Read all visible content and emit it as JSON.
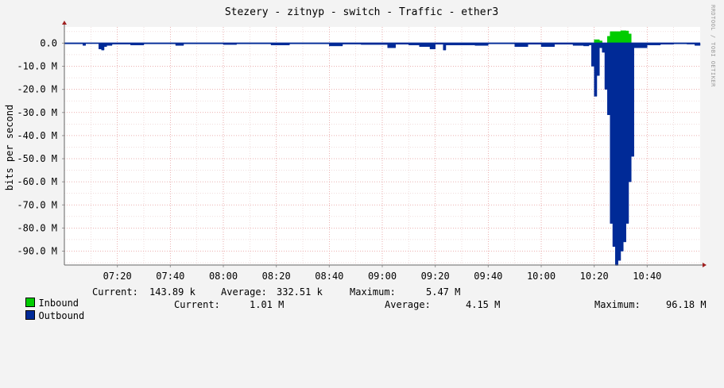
{
  "chart_data": {
    "type": "area",
    "title": "Stezery - zitnyp - switch - Traffic - ether3",
    "ylabel": "bits per second",
    "xlabel": "",
    "ylim": [
      -96,
      7
    ],
    "y_unit_note": "values in M (millions of bits per second)",
    "yticks": [
      "0.0",
      "-10.0 M",
      "-20.0 M",
      "-30.0 M",
      "-40.0 M",
      "-50.0 M",
      "-60.0 M",
      "-70.0 M",
      "-80.0 M",
      "-90.0 M"
    ],
    "ytick_values": [
      0,
      -10,
      -20,
      -30,
      -40,
      -50,
      -60,
      -70,
      -80,
      -90
    ],
    "xticks": [
      "07:20",
      "07:40",
      "08:00",
      "08:20",
      "08:40",
      "09:00",
      "09:20",
      "09:40",
      "10:00",
      "10:20",
      "10:40"
    ],
    "x_start": "07:00",
    "x_end": "11:00",
    "grid": true,
    "series": [
      {
        "name": "Inbound",
        "color": "#00cc00",
        "points": [
          [
            "10:18",
            0
          ],
          [
            "10:20",
            1.5
          ],
          [
            "10:22",
            1.0
          ],
          [
            "10:23",
            0
          ],
          [
            "10:25",
            3
          ],
          [
            "10:26",
            5
          ],
          [
            "10:30",
            5.4
          ],
          [
            "10:32",
            5.3
          ],
          [
            "10:33",
            4
          ],
          [
            "10:34",
            0
          ]
        ]
      },
      {
        "name": "Outbound",
        "color": "#002a97",
        "points": [
          [
            "07:00",
            -0.3
          ],
          [
            "07:07",
            -1.0
          ],
          [
            "07:08",
            -0.2
          ],
          [
            "07:13",
            -2.5
          ],
          [
            "07:14",
            -3
          ],
          [
            "07:15",
            -1.5
          ],
          [
            "07:16",
            -1.0
          ],
          [
            "07:18",
            -0.4
          ],
          [
            "07:25",
            -0.8
          ],
          [
            "07:30",
            -0.3
          ],
          [
            "07:42",
            -1.0
          ],
          [
            "07:45",
            -0.3
          ],
          [
            "08:00",
            -0.6
          ],
          [
            "08:05",
            -0.3
          ],
          [
            "08:18",
            -0.8
          ],
          [
            "08:25",
            -0.3
          ],
          [
            "08:40",
            -1.2
          ],
          [
            "08:45",
            -0.4
          ],
          [
            "08:52",
            -0.6
          ],
          [
            "09:02",
            -2.0
          ],
          [
            "09:05",
            -0.5
          ],
          [
            "09:10",
            -0.8
          ],
          [
            "09:14",
            -1.5
          ],
          [
            "09:18",
            -2.5
          ],
          [
            "09:20",
            -0.5
          ],
          [
            "09:23",
            -3.0
          ],
          [
            "09:24",
            -0.8
          ],
          [
            "09:35",
            -1.0
          ],
          [
            "09:40",
            -0.3
          ],
          [
            "09:50",
            -1.5
          ],
          [
            "09:55",
            -0.5
          ],
          [
            "10:00",
            -1.5
          ],
          [
            "10:05",
            -0.5
          ],
          [
            "10:12",
            -1.0
          ],
          [
            "10:16",
            -1.2
          ],
          [
            "10:18",
            -0.8
          ],
          [
            "10:19",
            -10
          ],
          [
            "10:20",
            -23
          ],
          [
            "10:21",
            -14
          ],
          [
            "10:22",
            -2
          ],
          [
            "10:23",
            -4
          ],
          [
            "10:24",
            -20
          ],
          [
            "10:25",
            -31
          ],
          [
            "10:26",
            -78
          ],
          [
            "10:27",
            -88
          ],
          [
            "10:28",
            -96.18
          ],
          [
            "10:29",
            -94
          ],
          [
            "10:30",
            -90
          ],
          [
            "10:31",
            -86
          ],
          [
            "10:32",
            -78
          ],
          [
            "10:33",
            -60
          ],
          [
            "10:34",
            -49
          ],
          [
            "10:35",
            -2
          ],
          [
            "10:40",
            -0.8
          ],
          [
            "10:45",
            -0.5
          ],
          [
            "10:50",
            -0.3
          ],
          [
            "10:55",
            -0.4
          ],
          [
            "10:58",
            -1.0
          ],
          [
            "11:00",
            -0.5
          ]
        ]
      }
    ]
  },
  "attribution": "RRDTOOL / TOBI OETIKER",
  "legend": {
    "inbound": {
      "name": "Inbound",
      "color": "#00cc00",
      "current_label": "Current:",
      "current": "143.89 k",
      "average_label": "Average:",
      "average": "332.51 k",
      "maximum_label": "Maximum:",
      "maximum": "5.47 M"
    },
    "outbound": {
      "name": "Outbound",
      "color": "#002a97",
      "current_label": "Current:",
      "current": "1.01 M",
      "average_label": "Average:",
      "average": "4.15 M",
      "maximum_label": "Maximum:",
      "maximum": "96.18 M"
    }
  }
}
